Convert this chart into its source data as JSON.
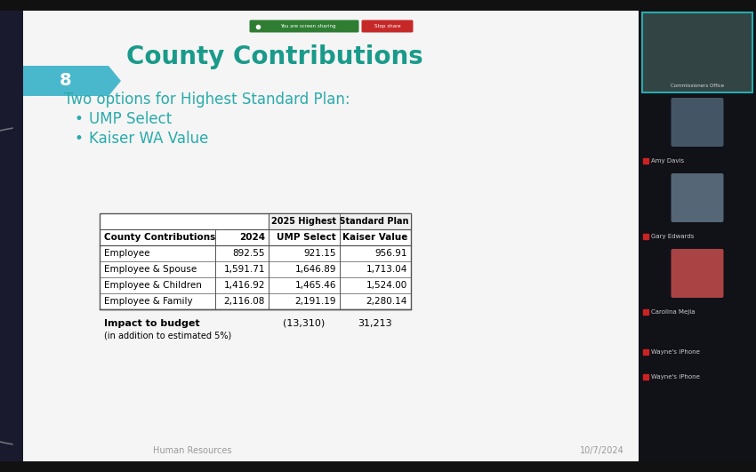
{
  "title": "County Contributions",
  "subtitle": "Two options for Highest Standard Plan:",
  "bullets": [
    "UMP Select",
    "Kaiser WA Value"
  ],
  "slide_number": "8",
  "table_header_main": "2025 Highest Standard Plan",
  "table_col_headers": [
    "County Contributions",
    "2024",
    "UMP Select",
    "Kaiser Value"
  ],
  "table_rows": [
    [
      "Employee",
      "892.55",
      "921.15",
      "956.91"
    ],
    [
      "Employee & Spouse",
      "1,591.71",
      "1,646.89",
      "1,713.04"
    ],
    [
      "Employee & Children",
      "1,416.92",
      "1,465.46",
      "1,524.00"
    ],
    [
      "Employee & Family",
      "2,116.08",
      "2,191.19",
      "2,280.14"
    ]
  ],
  "impact_label": "Impact to budget",
  "impact_note": "(in addition to estimated 5%)",
  "impact_ump": "(13,310)",
  "impact_kaiser": "31,213",
  "footer_left": "Human Resources",
  "footer_right": "10/7/2024",
  "title_color": "#1a9a8a",
  "subtitle_color": "#2aabab",
  "bullet_color": "#2aabab",
  "slide_bg": "#f5f5f5",
  "slide_number_bg": "#4ab8cc",
  "slide_number_color": "#ffffff",
  "outer_bg": "#1a1a2e",
  "table_border_color": "#555555",
  "footer_color": "#999999",
  "status_bar_bg": "#2e7d32",
  "stop_share_color": "#c62828",
  "accent_bar_color": "#1a1a2e",
  "arc_color1": "#aaaaaa",
  "arc_color2": "#cccccc",
  "right_panel_bg": "#1a1a2e",
  "right_panel_device_bg": "#111122"
}
